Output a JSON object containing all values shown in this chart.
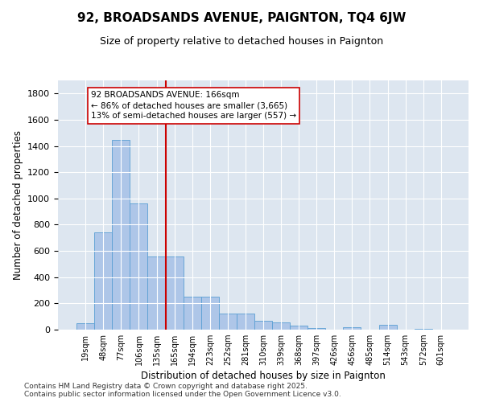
{
  "title": "92, BROADSANDS AVENUE, PAIGNTON, TQ4 6JW",
  "subtitle": "Size of property relative to detached houses in Paignton",
  "xlabel": "Distribution of detached houses by size in Paignton",
  "ylabel": "Number of detached properties",
  "categories": [
    "19sqm",
    "48sqm",
    "77sqm",
    "106sqm",
    "135sqm",
    "165sqm",
    "194sqm",
    "223sqm",
    "252sqm",
    "281sqm",
    "310sqm",
    "339sqm",
    "368sqm",
    "397sqm",
    "426sqm",
    "456sqm",
    "485sqm",
    "514sqm",
    "543sqm",
    "572sqm",
    "601sqm"
  ],
  "values": [
    50,
    740,
    1445,
    960,
    560,
    560,
    250,
    250,
    120,
    120,
    65,
    55,
    30,
    15,
    0,
    20,
    0,
    35,
    0,
    5,
    0
  ],
  "bar_color": "#aec6e8",
  "bar_edgecolor": "#5a9fd4",
  "marker_index": 5,
  "marker_color": "#cc0000",
  "annotation_text": "92 BROADSANDS AVENUE: 166sqm\n← 86% of detached houses are smaller (3,665)\n13% of semi-detached houses are larger (557) →",
  "annotation_box_color": "#ffffff",
  "annotation_box_edgecolor": "#cc0000",
  "ylim": [
    0,
    1900
  ],
  "yticks": [
    0,
    200,
    400,
    600,
    800,
    1000,
    1200,
    1400,
    1600,
    1800
  ],
  "background_color": "#dde6f0",
  "footer_line1": "Contains HM Land Registry data © Crown copyright and database right 2025.",
  "footer_line2": "Contains public sector information licensed under the Open Government Licence v3.0."
}
